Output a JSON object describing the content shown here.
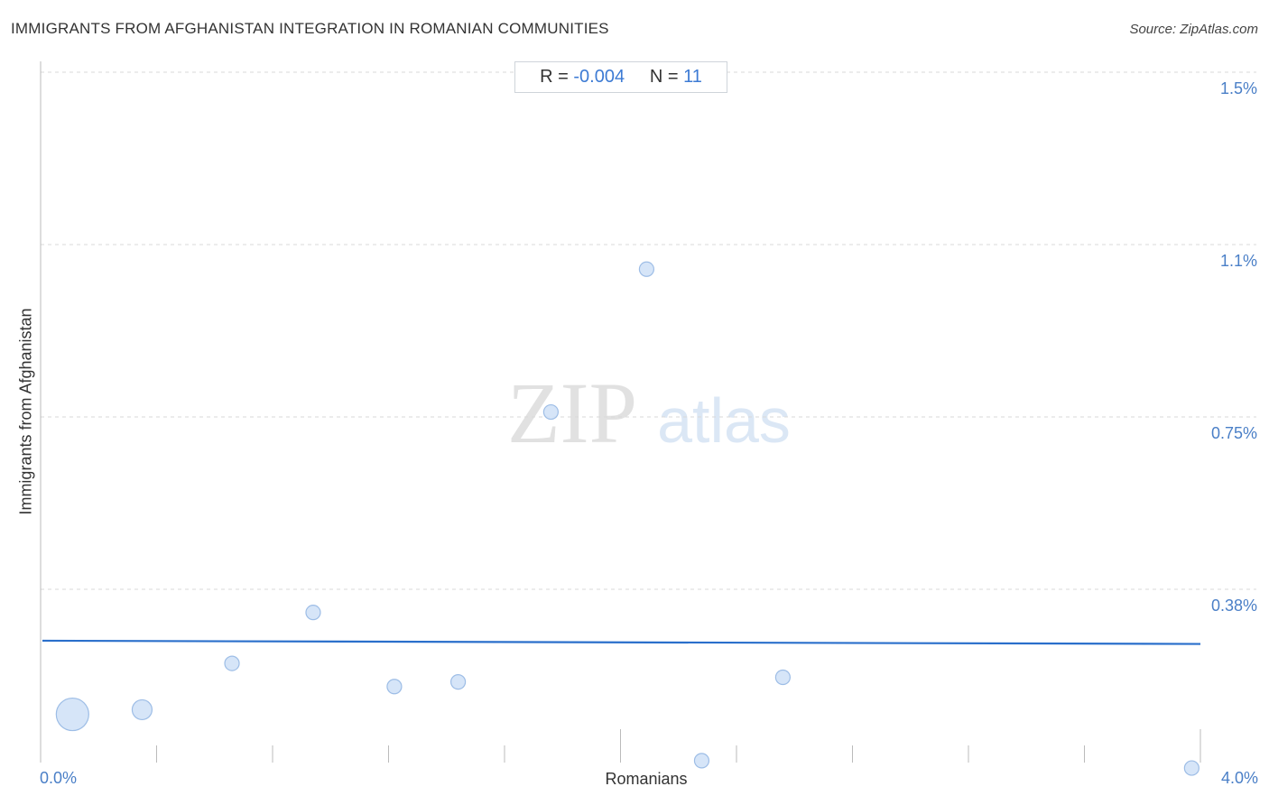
{
  "title": "IMMIGRANTS FROM AFGHANISTAN INTEGRATION IN ROMANIAN COMMUNITIES",
  "source": "Source: ZipAtlas.com",
  "stats": {
    "r_label": "R =",
    "r_value": "-0.004",
    "n_label": "N =",
    "n_value": "11"
  },
  "watermark": {
    "zip": "ZIP",
    "atlas": "atlas"
  },
  "colors": {
    "point_fill": "#cfe0f7",
    "point_stroke": "#9dbde6",
    "trend": "#2a6fcb",
    "axis_text": "#4a7fc7",
    "grid": "#d9d9d9"
  },
  "chart_data": {
    "type": "scatter",
    "title": "IMMIGRANTS FROM AFGHANISTAN INTEGRATION IN ROMANIAN COMMUNITIES",
    "xlabel": "Romanians",
    "ylabel": "Immigrants from Afghanistan",
    "xlim": [
      0.0,
      4.0
    ],
    "ylim": [
      0.0,
      1.5
    ],
    "x_tick_labels": [
      "0.0%",
      "4.0%"
    ],
    "y_ticks": [
      0.38,
      0.75,
      1.1,
      1.5
    ],
    "y_tick_labels": [
      "0.38%",
      "0.75%",
      "1.1%",
      "1.5%"
    ],
    "grid": true,
    "points": [
      {
        "x": 0.11,
        "y": 0.11,
        "size": "large"
      },
      {
        "x": 0.35,
        "y": 0.12,
        "size": "medium"
      },
      {
        "x": 0.66,
        "y": 0.22,
        "size": "small"
      },
      {
        "x": 0.94,
        "y": 0.33,
        "size": "small"
      },
      {
        "x": 1.22,
        "y": 0.17,
        "size": "small"
      },
      {
        "x": 1.44,
        "y": 0.18,
        "size": "small"
      },
      {
        "x": 1.76,
        "y": 0.76,
        "size": "small"
      },
      {
        "x": 2.09,
        "y": 1.05,
        "size": "small"
      },
      {
        "x": 2.28,
        "y": 0.01,
        "size": "small"
      },
      {
        "x": 2.56,
        "y": 0.19,
        "size": "small"
      },
      {
        "x": 3.97,
        "y": -0.006,
        "size": "small"
      }
    ],
    "trend_line": {
      "x": [
        0.0,
        4.0
      ],
      "y": [
        0.269,
        0.262
      ]
    }
  }
}
